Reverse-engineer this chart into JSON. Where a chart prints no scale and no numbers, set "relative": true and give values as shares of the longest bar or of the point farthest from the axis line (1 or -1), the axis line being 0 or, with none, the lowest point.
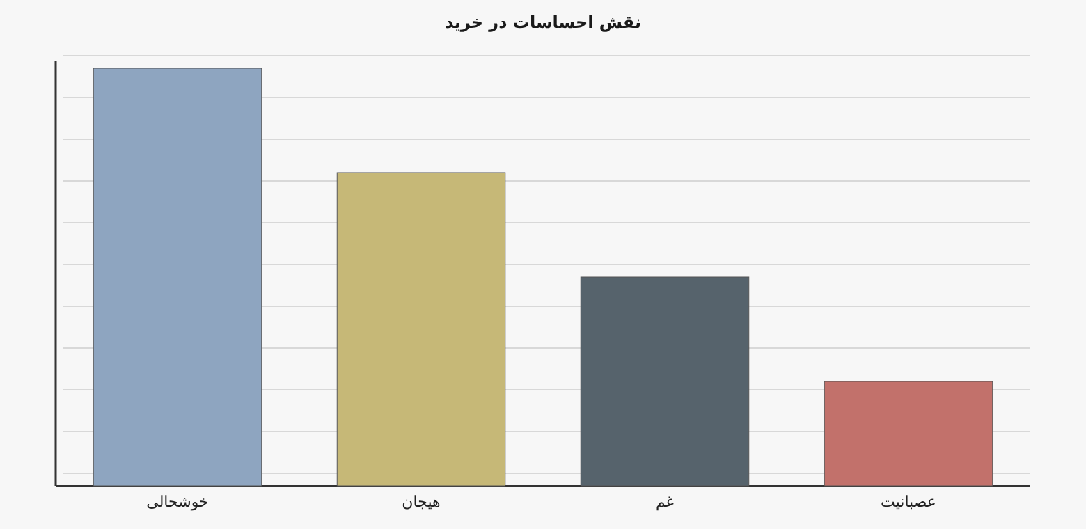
{
  "chart_data": {
    "type": "bar",
    "title": "نقش احساسات در خرید",
    "categories": [
      "خوشحالی",
      "هیجان",
      "غم",
      "عصبانیت"
    ],
    "values": [
      1,
      0.75,
      0.5,
      0.25
    ],
    "colors": [
      "#8ea5c0",
      "#c6b877",
      "#56636c",
      "#c2716b"
    ],
    "relative": true,
    "grid": true
  }
}
